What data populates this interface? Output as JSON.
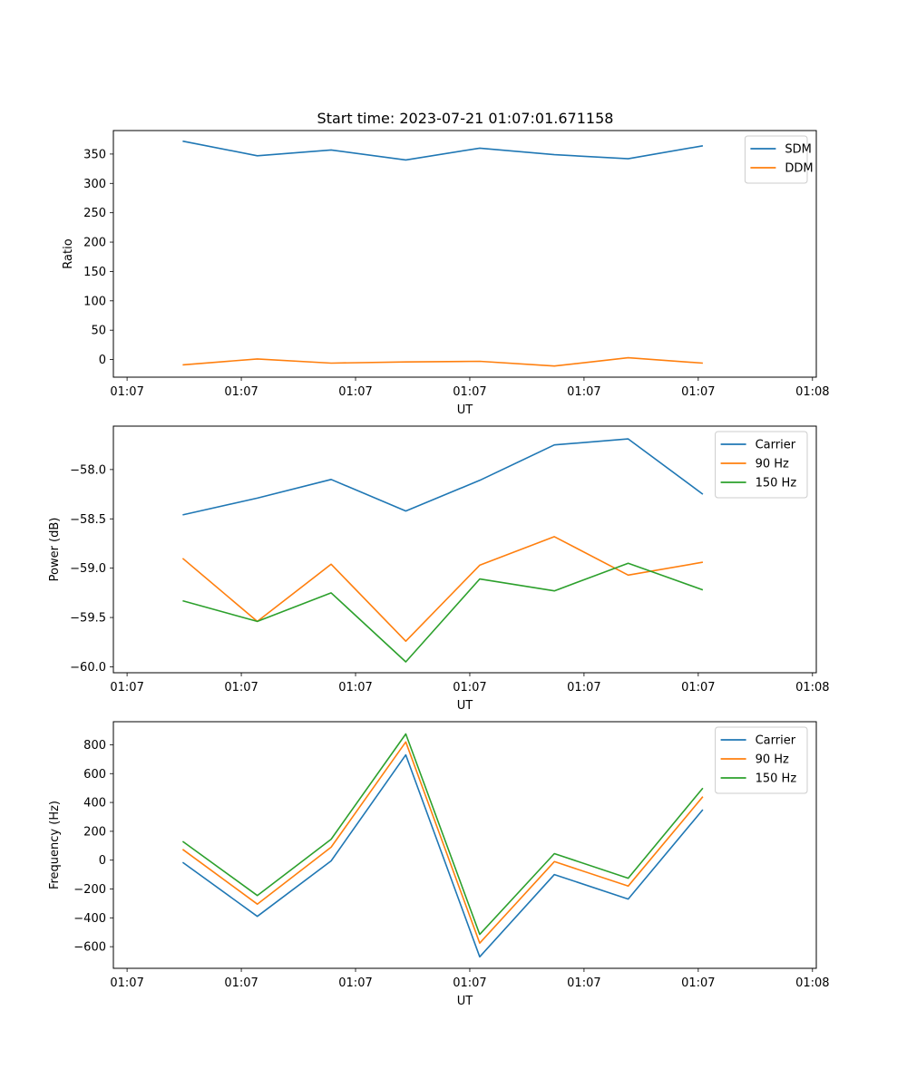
{
  "figure_title": "Start time: 2023-07-21 01:07:01.671158",
  "chart_data": [
    {
      "type": "line",
      "xlabel": "UT",
      "ylabel": "Ratio",
      "xlim": [
        -0.18,
        9.05
      ],
      "ylim": [
        -30,
        390
      ],
      "yticks": [
        0,
        50,
        100,
        150,
        200,
        250,
        300,
        350
      ],
      "xticks": [
        0,
        1.5,
        3,
        4.5,
        6,
        7.5,
        9
      ],
      "xtick_labels": [
        "01:07",
        "01:07",
        "01:07",
        "01:07",
        "01:07",
        "01:07",
        "01:08"
      ],
      "x": [
        0.73,
        1.71,
        2.68,
        3.66,
        4.63,
        5.61,
        6.58,
        7.56
      ],
      "legend_position": "upper right",
      "series": [
        {
          "name": "SDM",
          "color": "#1f77b4",
          "values": [
            372,
            347,
            357,
            340,
            360,
            349,
            342,
            364
          ]
        },
        {
          "name": "DDM",
          "color": "#ff7f0e",
          "values": [
            -9,
            1,
            -6,
            -4,
            -3,
            -11,
            3,
            -6
          ]
        }
      ]
    },
    {
      "type": "line",
      "xlabel": "UT",
      "ylabel": "Power (dB)",
      "xlim": [
        -0.18,
        9.05
      ],
      "ylim": [
        -60.06,
        -57.56
      ],
      "yticks": [
        -60.0,
        -59.5,
        -59.0,
        -58.5,
        -58.0
      ],
      "ytick_labels": [
        "−60.0",
        "−59.5",
        "−59.0",
        "−58.5",
        "−58.0"
      ],
      "xticks": [
        0,
        1.5,
        3,
        4.5,
        6,
        7.5,
        9
      ],
      "xtick_labels": [
        "01:07",
        "01:07",
        "01:07",
        "01:07",
        "01:07",
        "01:07",
        "01:08"
      ],
      "x": [
        0.73,
        1.71,
        2.68,
        3.66,
        4.63,
        5.61,
        6.58,
        7.56
      ],
      "legend_position": "upper right",
      "series": [
        {
          "name": "Carrier",
          "color": "#1f77b4",
          "values": [
            -58.46,
            -58.29,
            -58.1,
            -58.42,
            -58.11,
            -57.75,
            -57.69,
            -58.25
          ]
        },
        {
          "name": "90 Hz",
          "color": "#ff7f0e",
          "values": [
            -58.9,
            -59.54,
            -58.96,
            -59.74,
            -58.97,
            -58.68,
            -59.07,
            -58.94
          ]
        },
        {
          "name": "150 Hz",
          "color": "#2ca02c",
          "values": [
            -59.33,
            -59.54,
            -59.25,
            -59.95,
            -59.11,
            -59.23,
            -58.95,
            -59.22
          ]
        }
      ]
    },
    {
      "type": "line",
      "xlabel": "UT",
      "ylabel": "Frequency (Hz)",
      "xlim": [
        -0.18,
        9.05
      ],
      "ylim": [
        -750,
        960
      ],
      "yticks": [
        -600,
        -400,
        -200,
        0,
        200,
        400,
        600,
        800
      ],
      "ytick_labels": [
        "−600",
        "−400",
        "−200",
        "0",
        "200",
        "400",
        "600",
        "800"
      ],
      "xticks": [
        0,
        1.5,
        3,
        4.5,
        6,
        7.5,
        9
      ],
      "xtick_labels": [
        "01:07",
        "01:07",
        "01:07",
        "01:07",
        "01:07",
        "01:07",
        "01:08"
      ],
      "x": [
        0.73,
        1.71,
        2.68,
        3.66,
        4.63,
        5.61,
        6.58,
        7.56
      ],
      "legend_position": "upper right",
      "series": [
        {
          "name": "Carrier",
          "color": "#1f77b4",
          "values": [
            -15,
            -390,
            -5,
            730,
            -670,
            -100,
            -270,
            350
          ]
        },
        {
          "name": "90 Hz",
          "color": "#ff7f0e",
          "values": [
            75,
            -305,
            90,
            820,
            -575,
            -10,
            -180,
            440
          ]
        },
        {
          "name": "150 Hz",
          "color": "#2ca02c",
          "values": [
            130,
            -245,
            145,
            875,
            -515,
            45,
            -125,
            500
          ]
        }
      ]
    }
  ]
}
